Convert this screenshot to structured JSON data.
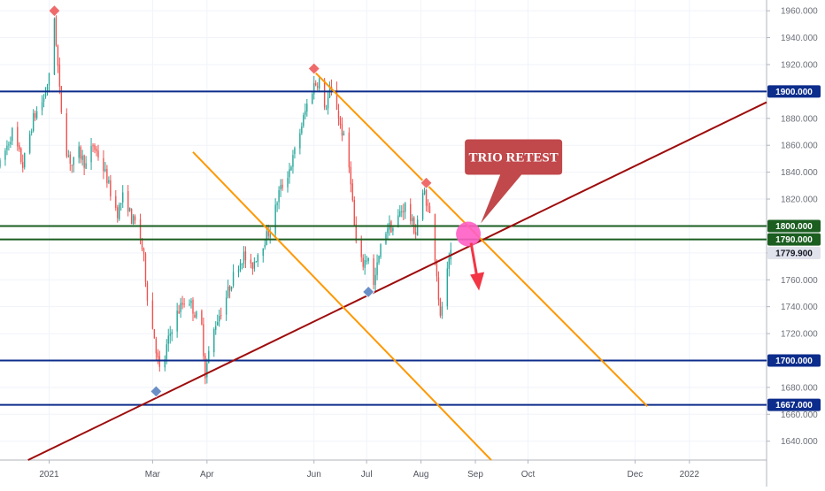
{
  "chart_data": {
    "type": "candlestick",
    "title": "",
    "ylim": [
      1626,
      1968
    ],
    "y_ticks": [
      1960,
      1940,
      1920,
      1900,
      1880,
      1860,
      1840,
      1820,
      1800,
      1780,
      1760,
      1740,
      1720,
      1700,
      1680,
      1660,
      1640
    ],
    "x_ticks": [
      {
        "label": "2021",
        "day": 1
      },
      {
        "label": "Mar",
        "day": 60
      },
      {
        "label": "Apr",
        "day": 91
      },
      {
        "label": "Jun",
        "day": 152
      },
      {
        "label": "Jul",
        "day": 182
      },
      {
        "label": "Aug",
        "day": 213
      },
      {
        "label": "Sep",
        "day": 244
      },
      {
        "label": "Oct",
        "day": 274
      },
      {
        "label": "Dec",
        "day": 335
      },
      {
        "label": "2022",
        "day": 366
      }
    ],
    "xlim_days": [
      -27,
      410
    ],
    "price_path": [
      [
        -27,
        1845
      ],
      [
        -20,
        1870
      ],
      [
        -14,
        1845
      ],
      [
        -8,
        1880
      ],
      [
        -2,
        1895
      ],
      [
        2,
        1915
      ],
      [
        4,
        1955
      ],
      [
        7,
        1900
      ],
      [
        10,
        1860
      ],
      [
        14,
        1845
      ],
      [
        18,
        1855
      ],
      [
        22,
        1845
      ],
      [
        26,
        1860
      ],
      [
        30,
        1850
      ],
      [
        34,
        1835
      ],
      [
        37,
        1820
      ],
      [
        40,
        1810
      ],
      [
        44,
        1825
      ],
      [
        48,
        1805
      ],
      [
        52,
        1800
      ],
      [
        55,
        1775
      ],
      [
        58,
        1735
      ],
      [
        61,
        1718
      ],
      [
        63,
        1700
      ],
      [
        65,
        1685
      ],
      [
        68,
        1710
      ],
      [
        72,
        1730
      ],
      [
        76,
        1740
      ],
      [
        80,
        1748
      ],
      [
        84,
        1735
      ],
      [
        88,
        1725
      ],
      [
        90,
        1690
      ],
      [
        92,
        1705
      ],
      [
        96,
        1728
      ],
      [
        100,
        1740
      ],
      [
        104,
        1755
      ],
      [
        108,
        1770
      ],
      [
        112,
        1778
      ],
      [
        116,
        1768
      ],
      [
        120,
        1780
      ],
      [
        124,
        1790
      ],
      [
        128,
        1800
      ],
      [
        132,
        1825
      ],
      [
        136,
        1835
      ],
      [
        140,
        1850
      ],
      [
        144,
        1870
      ],
      [
        148,
        1890
      ],
      [
        152,
        1905
      ],
      [
        155,
        1908
      ],
      [
        158,
        1885
      ],
      [
        161,
        1900
      ],
      [
        164,
        1895
      ],
      [
        167,
        1875
      ],
      [
        170,
        1860
      ],
      [
        173,
        1835
      ],
      [
        175,
        1800
      ],
      [
        177,
        1775
      ],
      [
        180,
        1772
      ],
      [
        183,
        1778
      ],
      [
        186,
        1755
      ],
      [
        188,
        1770
      ],
      [
        191,
        1790
      ],
      [
        194,
        1800
      ],
      [
        198,
        1798
      ],
      [
        201,
        1810
      ],
      [
        204,
        1815
      ],
      [
        207,
        1805
      ],
      [
        210,
        1795
      ],
      [
        212,
        1815
      ],
      [
        215,
        1825
      ],
      [
        218,
        1808
      ],
      [
        220,
        1790
      ],
      [
        222,
        1765
      ],
      [
        224,
        1730
      ],
      [
        226,
        1752
      ],
      [
        228,
        1765
      ],
      [
        230,
        1778
      ]
    ],
    "marks": [
      {
        "kind": "high",
        "day": 4,
        "price": 1960
      },
      {
        "kind": "high",
        "day": 152,
        "price": 1917
      },
      {
        "kind": "high",
        "day": 216,
        "price": 1832
      },
      {
        "kind": "low",
        "day": 62,
        "price": 1677
      },
      {
        "kind": "low",
        "day": 183,
        "price": 1751
      }
    ],
    "horizontal_levels": [
      {
        "price": 1900,
        "label": "1900.000",
        "color": "#0d2d8c",
        "tag_color": "#0d2d8c"
      },
      {
        "price": 1700,
        "label": "1700.000",
        "color": "#0d2d8c",
        "tag_color": "#0d2d8c"
      },
      {
        "price": 1667,
        "label": "1667.000",
        "color": "#0d2d8c",
        "tag_color": "#0d2d8c"
      },
      {
        "price": 1800,
        "label": "1800.000",
        "color": "#1b5e20",
        "tag_color": "#1b5e20"
      },
      {
        "price": 1790,
        "label": "1790.000",
        "color": "#1b5e20",
        "tag_color": "#1b5e20"
      }
    ],
    "last_price": {
      "price": 1779.9,
      "label": "1779.900"
    },
    "trendlines": [
      {
        "name": "rising-trendline",
        "color": "#9e0c0c",
        "from": [
          -11,
          1626
        ],
        "to": [
          410,
          1892
        ]
      },
      {
        "name": "channel-upper",
        "color": "#ff9800",
        "from": [
          152,
          1915
        ],
        "to": [
          342,
          1666
        ]
      },
      {
        "name": "channel-lower",
        "color": "#ff9800",
        "from": [
          83,
          1855
        ],
        "to": [
          253,
          1626
        ]
      }
    ],
    "annotation": {
      "text": "TRIO RETEST",
      "box_color": "#c1484b",
      "circle_color": "#ff5ec4",
      "arrow_color": "#f23645",
      "point": [
        240,
        1794
      ]
    },
    "colors": {
      "up": "#26a69a",
      "down": "#ef5350",
      "high_marker": "#ef6b6b",
      "low_marker": "#6a8fc7"
    }
  }
}
